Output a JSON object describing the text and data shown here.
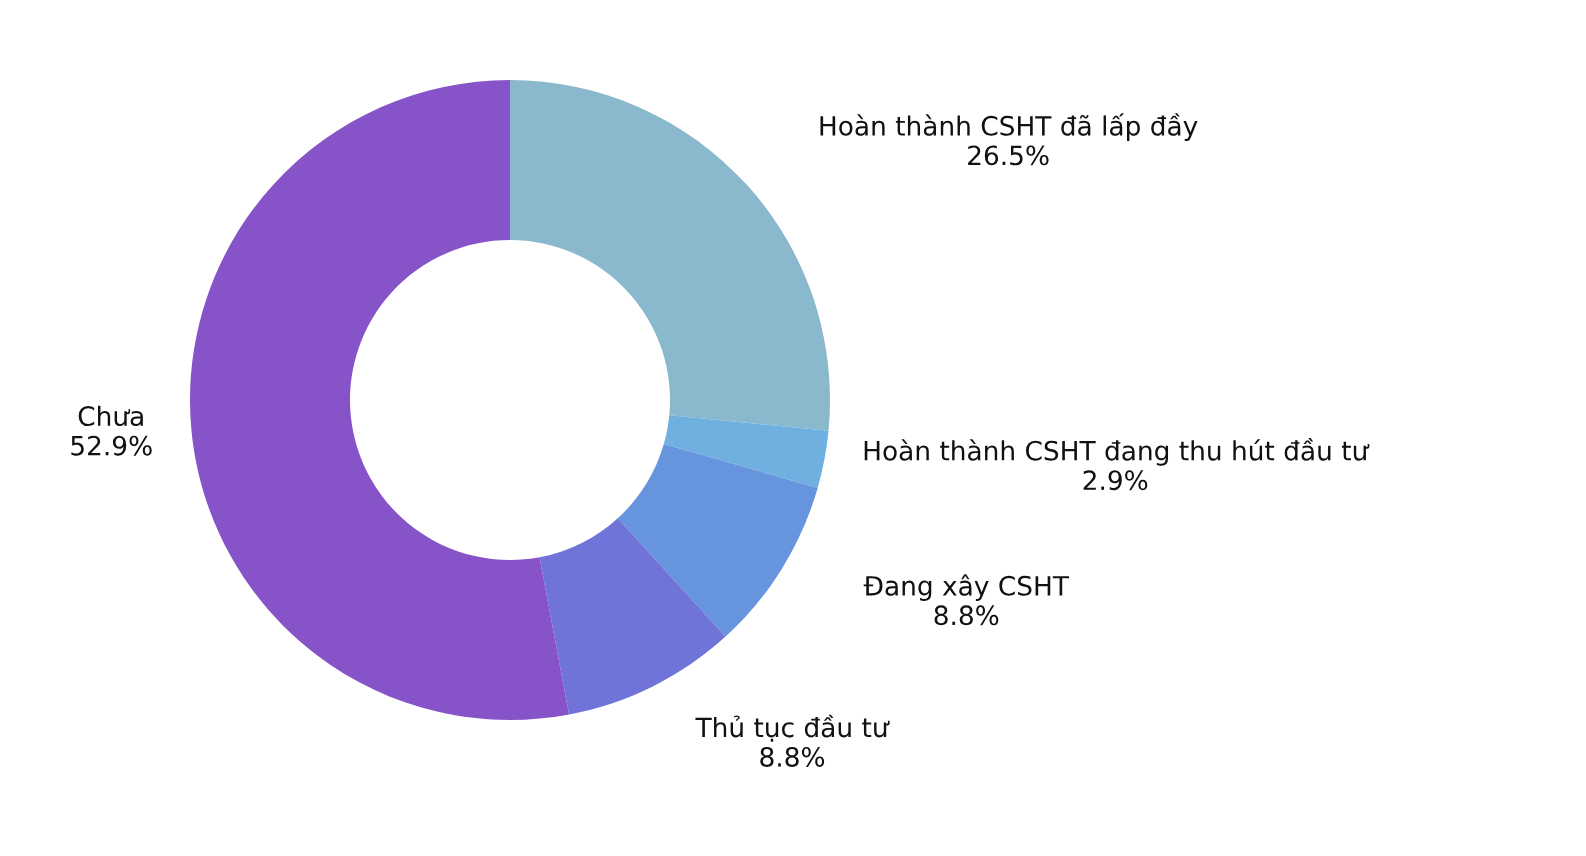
{
  "chart_data": {
    "type": "donut",
    "categories": [
      "Hoàn thành CSHT đã lấp đầy",
      "Hoàn thành CSHT đang thu hút đầu tư",
      "Đang xây CSHT",
      "Thủ tục đầu tư",
      "Chưa"
    ],
    "values": [
      26.5,
      2.9,
      8.8,
      8.8,
      52.9
    ],
    "colors": [
      "#8ab8cc",
      "#70b0e0",
      "#6694dd",
      "#7073d8",
      "#8753c8"
    ],
    "value_labels": [
      "26.5%",
      "2.9%",
      "8.8%",
      "8.8%",
      "52.9%"
    ]
  }
}
